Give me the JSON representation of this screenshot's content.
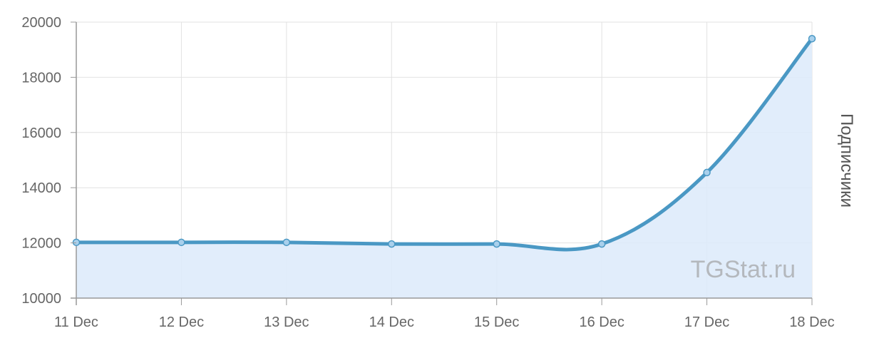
{
  "chart_data": {
    "type": "area",
    "categories": [
      "11 Dec",
      "12 Dec",
      "13 Dec",
      "14 Dec",
      "15 Dec",
      "16 Dec",
      "17 Dec",
      "18 Dec"
    ],
    "series": [
      {
        "values": [
          12020,
          12020,
          12020,
          11960,
          11960,
          11960,
          14550,
          19400
        ]
      }
    ],
    "title": "",
    "xlabel": "",
    "ylabel": "Подписчики",
    "ylim": [
      10000,
      20000
    ],
    "yticks": [
      "10000",
      "12000",
      "14000",
      "16000",
      "18000",
      "20000"
    ],
    "grid": true,
    "legend": "none",
    "watermark": "TGStat.ru",
    "colors": {
      "line": "#4a98c4",
      "fill": "#deebfb",
      "point_fill": "#a9d0ec",
      "grid": "#e2e2e2",
      "axis": "#999999"
    }
  }
}
